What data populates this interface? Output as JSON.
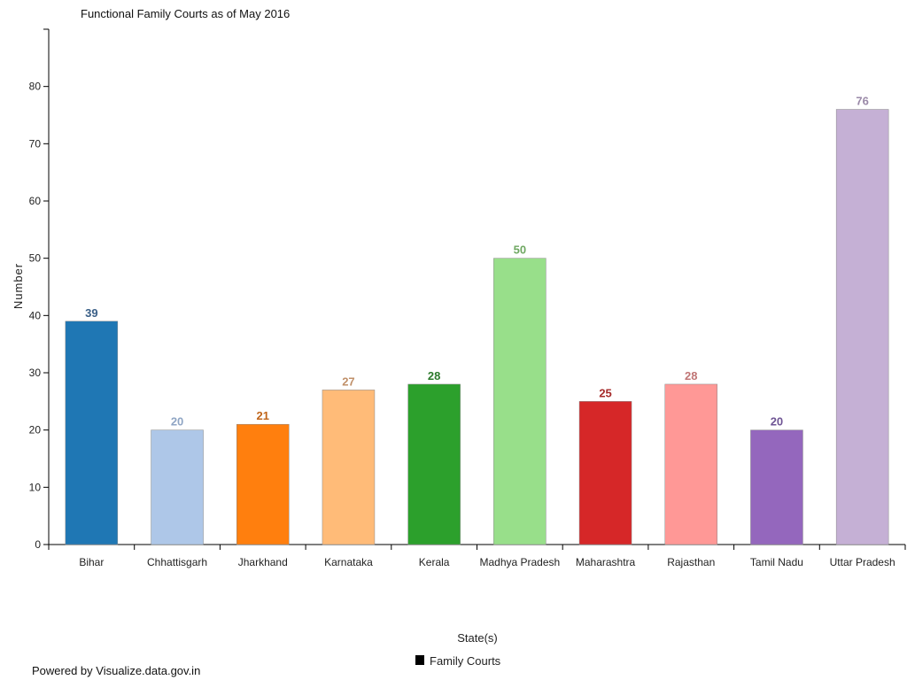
{
  "chart_data": {
    "type": "bar",
    "title": "Functional Family Courts as of May 2016",
    "xlabel": "State(s)",
    "ylabel": "Number",
    "ylim": [
      0,
      90
    ],
    "yticks": [
      0,
      10,
      20,
      30,
      40,
      50,
      60,
      70,
      80
    ],
    "categories": [
      "Bihar",
      "Chhattisgarh",
      "Jharkhand",
      "Karnataka",
      "Kerala",
      "Madhya Pradesh",
      "Maharashtra",
      "Rajasthan",
      "Tamil Nadu",
      "Uttar Pradesh"
    ],
    "series": [
      {
        "name": "Family Courts",
        "values": [
          39,
          20,
          21,
          27,
          28,
          50,
          25,
          28,
          20,
          76
        ]
      }
    ],
    "bar_colors": [
      "#1f77b4",
      "#aec7e8",
      "#ff7f0e",
      "#ffbb78",
      "#2ca02c",
      "#98df8a",
      "#d62728",
      "#ff9896",
      "#9467bd",
      "#c5b0d5"
    ],
    "label_colors": [
      "#3a5f87",
      "#8fa5c4",
      "#c0651a",
      "#c0906a",
      "#2c7a2c",
      "#6fa862",
      "#a52a2a",
      "#c07575",
      "#6e5494",
      "#9a89a8"
    ],
    "legend": {
      "position": "bottom-center",
      "marker_color": "#000000"
    },
    "grid": false
  },
  "footer": {
    "credit": "Powered by Visualize.data.gov.in"
  }
}
